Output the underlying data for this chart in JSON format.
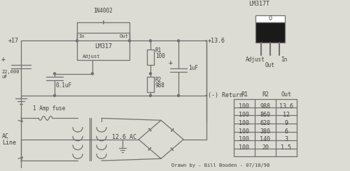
{
  "bg_color": "#dcdcd4",
  "line_color": "#707070",
  "text_color": "#404040",
  "drawn_by": "Drawn by - Bill Bouden - 07/10/98",
  "table": {
    "headers": [
      "R1",
      "R2",
      "Out"
    ],
    "rows": [
      [
        100,
        988,
        "13.6"
      ],
      [
        100,
        860,
        "12"
      ],
      [
        100,
        620,
        "9"
      ],
      [
        100,
        380,
        "6"
      ],
      [
        100,
        140,
        "3"
      ],
      [
        100,
        20,
        "1.5"
      ]
    ]
  }
}
